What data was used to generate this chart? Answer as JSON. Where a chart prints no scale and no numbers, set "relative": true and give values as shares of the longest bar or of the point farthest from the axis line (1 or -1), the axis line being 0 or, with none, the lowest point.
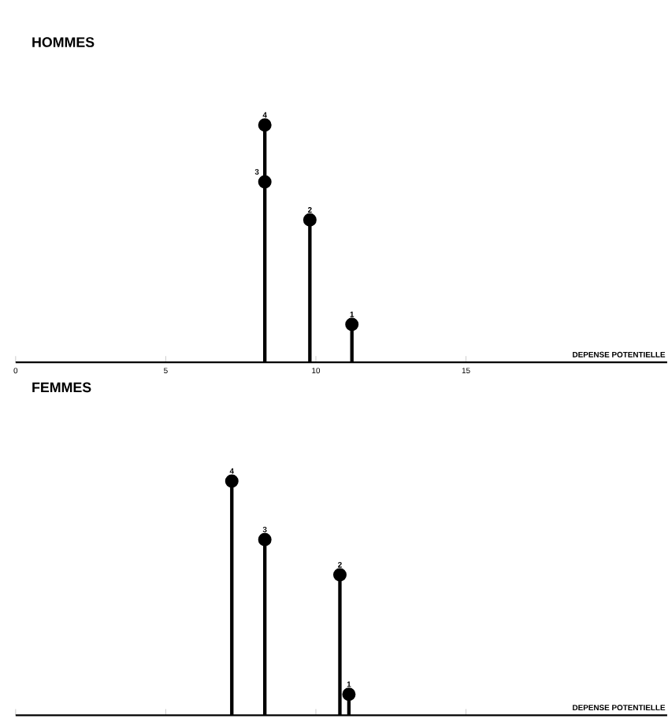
{
  "chart_data": [
    {
      "type": "lollipop",
      "title": "HOMMES",
      "xlabel": "DEPENSE POTENTIELLE",
      "relative": true,
      "marker": "circle",
      "color": "#000000",
      "x": [
        11.2,
        9.8,
        8.3,
        8.3
      ],
      "values": [
        0.16,
        0.6,
        0.76,
        1
      ],
      "xlim": [
        0,
        21.7
      ],
      "xticks": [
        0,
        5,
        10,
        15
      ],
      "annotations": [
        {
          "text": "1",
          "x": 11.2,
          "y": 0.16
        },
        {
          "text": "2",
          "x": 9.8,
          "y": 0.6
        },
        {
          "text": "3",
          "x": 8.3,
          "y": 0.76
        },
        {
          "text": "4",
          "x": 8.3,
          "y": 1
        }
      ]
    },
    {
      "type": "lollipop",
      "title": "FEMMES",
      "xlabel": "DEPENSE POTENTIELLE",
      "relative": true,
      "marker": "circle",
      "color": "#000000",
      "tick_labels": false,
      "x": [
        11.1,
        10.8,
        8.3,
        7.2
      ],
      "values": [
        0.09,
        0.6,
        0.75,
        1
      ],
      "xlim": [
        0,
        21.7
      ],
      "xticks": [
        0,
        5,
        10,
        15
      ],
      "annotations": [
        {
          "text": "1",
          "x": 11.1,
          "y": 0.09
        },
        {
          "text": "2",
          "x": 10.8,
          "y": 0.6
        },
        {
          "text": "3",
          "x": 8.3,
          "y": 0.75
        },
        {
          "text": "4",
          "x": 7.2,
          "y": 1
        }
      ]
    }
  ]
}
